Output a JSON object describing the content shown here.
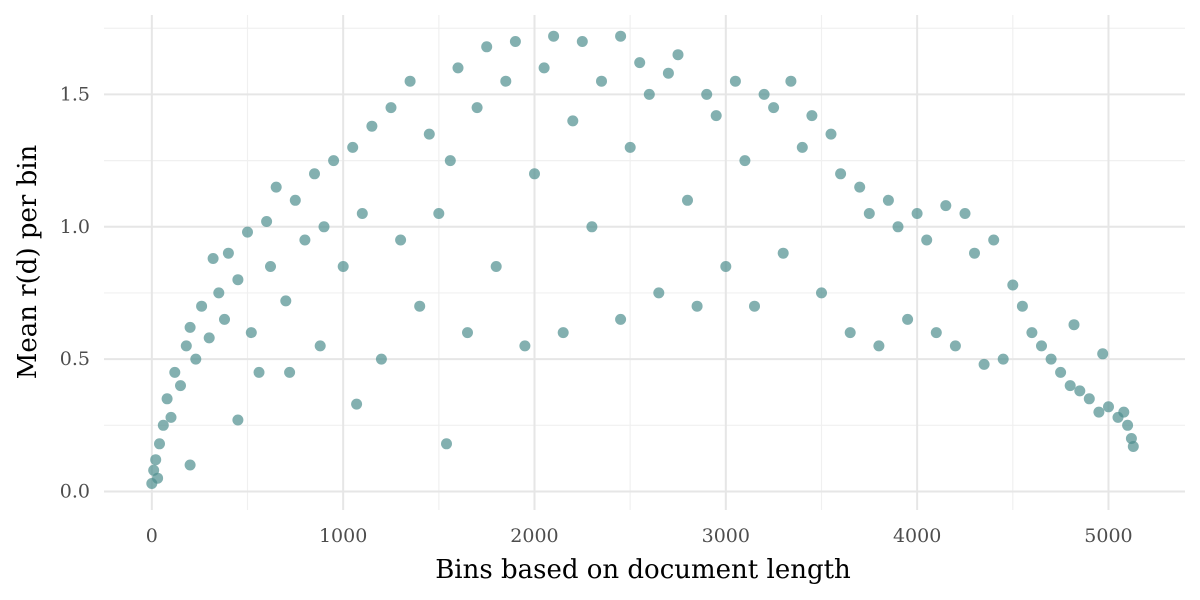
{
  "chart_data": {
    "type": "scatter",
    "title": "",
    "xlabel": "Bins based on document length",
    "ylabel": "Mean r(d) per bin",
    "xlim": [
      -250,
      5400
    ],
    "ylim": [
      -0.07,
      1.8
    ],
    "x_ticks": [
      0,
      1000,
      2000,
      3000,
      4000,
      5000
    ],
    "x_tick_labels": [
      "0",
      "1000",
      "2000",
      "3000",
      "4000",
      "5000"
    ],
    "y_ticks": [
      0.0,
      0.5,
      1.0,
      1.5
    ],
    "y_tick_labels": [
      "0.0",
      "0.5",
      "1.0",
      "1.5"
    ],
    "grid": true,
    "legend": "none",
    "point_color": "#4f8e8e",
    "point_opacity": 0.7,
    "series": [
      {
        "points": [
          [
            0,
            0.03
          ],
          [
            10,
            0.08
          ],
          [
            20,
            0.12
          ],
          [
            30,
            0.05
          ],
          [
            40,
            0.18
          ],
          [
            60,
            0.25
          ],
          [
            80,
            0.35
          ],
          [
            100,
            0.28
          ],
          [
            120,
            0.45
          ],
          [
            150,
            0.4
          ],
          [
            180,
            0.55
          ],
          [
            200,
            0.1
          ],
          [
            200,
            0.62
          ],
          [
            230,
            0.5
          ],
          [
            260,
            0.7
          ],
          [
            300,
            0.58
          ],
          [
            320,
            0.88
          ],
          [
            350,
            0.75
          ],
          [
            380,
            0.65
          ],
          [
            400,
            0.9
          ],
          [
            450,
            0.27
          ],
          [
            450,
            0.8
          ],
          [
            500,
            0.98
          ],
          [
            520,
            0.6
          ],
          [
            560,
            0.45
          ],
          [
            600,
            1.02
          ],
          [
            620,
            0.85
          ],
          [
            650,
            1.15
          ],
          [
            700,
            0.72
          ],
          [
            720,
            0.45
          ],
          [
            750,
            1.1
          ],
          [
            800,
            0.95
          ],
          [
            850,
            1.2
          ],
          [
            880,
            0.55
          ],
          [
            900,
            1.0
          ],
          [
            950,
            1.25
          ],
          [
            1000,
            0.85
          ],
          [
            1050,
            1.3
          ],
          [
            1070,
            0.33
          ],
          [
            1100,
            1.05
          ],
          [
            1150,
            1.38
          ],
          [
            1200,
            0.5
          ],
          [
            1250,
            1.45
          ],
          [
            1300,
            0.95
          ],
          [
            1350,
            1.55
          ],
          [
            1400,
            0.7
          ],
          [
            1450,
            1.35
          ],
          [
            1500,
            1.05
          ],
          [
            1540,
            0.18
          ],
          [
            1560,
            1.25
          ],
          [
            1600,
            1.6
          ],
          [
            1650,
            0.6
          ],
          [
            1700,
            1.45
          ],
          [
            1750,
            1.68
          ],
          [
            1800,
            0.85
          ],
          [
            1850,
            1.55
          ],
          [
            1900,
            1.7
          ],
          [
            1950,
            0.55
          ],
          [
            2000,
            1.2
          ],
          [
            2050,
            1.6
          ],
          [
            2100,
            1.72
          ],
          [
            2150,
            0.6
          ],
          [
            2200,
            1.4
          ],
          [
            2250,
            1.7
          ],
          [
            2300,
            1.0
          ],
          [
            2350,
            1.55
          ],
          [
            2450,
            1.72
          ],
          [
            2450,
            0.65
          ],
          [
            2500,
            1.3
          ],
          [
            2550,
            1.62
          ],
          [
            2600,
            1.5
          ],
          [
            2650,
            0.75
          ],
          [
            2700,
            1.58
          ],
          [
            2750,
            1.65
          ],
          [
            2800,
            1.1
          ],
          [
            2850,
            0.7
          ],
          [
            2900,
            1.5
          ],
          [
            2950,
            1.42
          ],
          [
            3000,
            0.85
          ],
          [
            3050,
            1.55
          ],
          [
            3100,
            1.25
          ],
          [
            3150,
            0.7
          ],
          [
            3200,
            1.5
          ],
          [
            3250,
            1.45
          ],
          [
            3300,
            0.9
          ],
          [
            3340,
            1.55
          ],
          [
            3400,
            1.3
          ],
          [
            3450,
            1.42
          ],
          [
            3500,
            0.75
          ],
          [
            3550,
            1.35
          ],
          [
            3600,
            1.2
          ],
          [
            3650,
            0.6
          ],
          [
            3700,
            1.15
          ],
          [
            3750,
            1.05
          ],
          [
            3800,
            0.55
          ],
          [
            3850,
            1.1
          ],
          [
            3900,
            1.0
          ],
          [
            3950,
            0.65
          ],
          [
            4000,
            1.05
          ],
          [
            4050,
            0.95
          ],
          [
            4100,
            0.6
          ],
          [
            4150,
            1.08
          ],
          [
            4200,
            0.55
          ],
          [
            4250,
            1.05
          ],
          [
            4300,
            0.9
          ],
          [
            4350,
            0.48
          ],
          [
            4400,
            0.95
          ],
          [
            4450,
            0.5
          ],
          [
            4500,
            0.78
          ],
          [
            4550,
            0.7
          ],
          [
            4600,
            0.6
          ],
          [
            4650,
            0.55
          ],
          [
            4700,
            0.5
          ],
          [
            4750,
            0.45
          ],
          [
            4800,
            0.4
          ],
          [
            4820,
            0.63
          ],
          [
            4850,
            0.38
          ],
          [
            4900,
            0.35
          ],
          [
            4950,
            0.3
          ],
          [
            4970,
            0.52
          ],
          [
            5000,
            0.32
          ],
          [
            5050,
            0.28
          ],
          [
            5080,
            0.3
          ],
          [
            5100,
            0.25
          ],
          [
            5120,
            0.2
          ],
          [
            5130,
            0.17
          ]
        ]
      }
    ]
  }
}
